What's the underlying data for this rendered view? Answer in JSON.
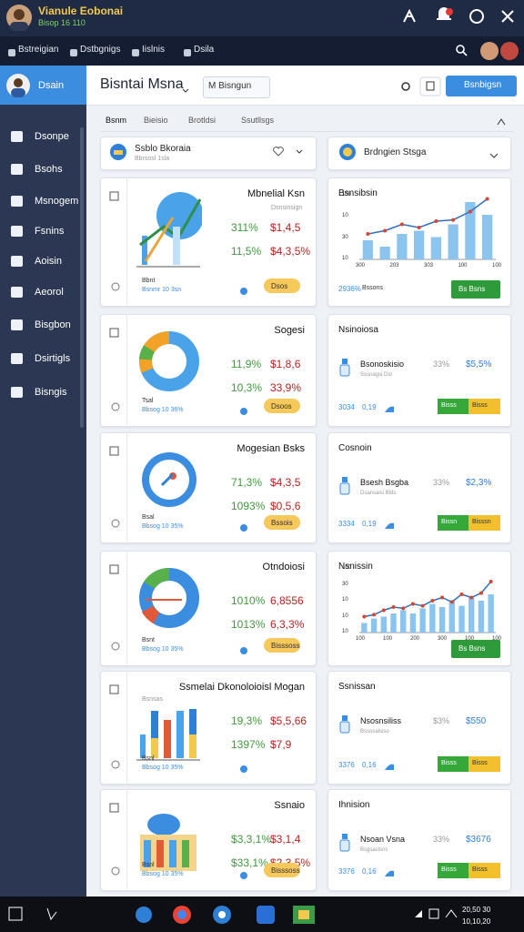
{
  "topbar": {
    "title": "Vianule Eobonai",
    "subtitle": "Bisop 16 110"
  },
  "nav": [
    "Bstreigian",
    "Dstbgnigs",
    "Iislnis",
    "Dsila"
  ],
  "sidebar": [
    "Dsain",
    "Dsonpe",
    "Bsohs",
    "Msnogem",
    "Fsnins",
    "Aoisin",
    "Aeorol",
    "Bisgbon",
    "Dsirtigls",
    "Bisngis"
  ],
  "header": {
    "title": "Bisntai Msna",
    "dropdown": "M Bisngun",
    "button": "Bsnbigsn"
  },
  "tabs": [
    "Bsnm",
    "Bieisio",
    "Brotldsi",
    "Ssutllsgs"
  ],
  "left_header": {
    "title": "Ssblo Bkoraia",
    "subtitle": "Bbrsosl 1sla"
  },
  "right_header": {
    "title": "Brdngien Stsga"
  },
  "left_cards": [
    {
      "title": "Mbnelial Ksn",
      "subtitle": "Dsnsinsign",
      "m1": "311%",
      "v1": "$1,4,5",
      "m2": "11,5%",
      "v2": "$4,3,5%",
      "foot1": "Bbnt",
      "foot2": "Bsnmr 10 3sn",
      "badge": "Dsos"
    },
    {
      "title": "Sogesi",
      "m1": "11,9%",
      "v1": "$1,8,6",
      "m2": "10,3%",
      "v2": "33,9%",
      "foot1": "Tsal",
      "foot2": "Bbsog 10 36%",
      "badge": "Dsoos"
    },
    {
      "title": "Mogesian Bsks",
      "m1": "71,3%",
      "v1": "$4,3,5",
      "m2": "1093%",
      "v2": "$0,5,6",
      "foot1": "Bsal",
      "foot2": "Bbsog 10 35%",
      "badge": "Bssois"
    },
    {
      "title": "Otndoiosi",
      "m1": "1010%",
      "v1": "6,8556",
      "m2": "1013%",
      "v2": "6,3,3%",
      "foot1": "Bsnt",
      "foot2": "Bbsog 10 35%",
      "badge": "Bisssoss"
    },
    {
      "title": "Ssmelai Dkonoloioisl Mogan",
      "subtitle": "Bsnsas",
      "m1": "19,3%",
      "v1": "$5,5,66",
      "m2": "1397%",
      "v2": "$7,9",
      "foot1": "Bsnl",
      "foot2": "Bbsog 10 35%"
    },
    {
      "title": "Ssnaio",
      "m1": "$3,3,1%",
      "v1": "$3,1,4",
      "m2": "$33,1%",
      "v2": "$2,3,5%",
      "foot1": "Bsnl",
      "foot2": "Bbsog 10 35%",
      "badge": "Bisssoss"
    }
  ],
  "right_cards": [
    {
      "title": "Bsnsibsin",
      "chart": {
        "type": "bar",
        "ylim": [
          0,
          100
        ],
        "bars": [
          30,
          20,
          40,
          45,
          35,
          55,
          90,
          70
        ],
        "line": [
          40,
          45,
          55,
          50,
          60,
          62,
          75,
          95
        ],
        "y_labels": [
          "100",
          "10",
          "30",
          "10"
        ],
        "x_labels": [
          "300",
          "203",
          "303",
          "100",
          "100"
        ]
      },
      "foot": "2936%",
      "foot2": "Bssons",
      "button": "Bs Bsns"
    },
    {
      "title": "Nsinoiosa",
      "item": "Bsonoskisio",
      "item_sub": "Sssnagsi Dsl",
      "pct": "33%",
      "val": "$5,5%",
      "foot": "3034",
      "foot2": "0,19",
      "badge1": "Bisss",
      "badge2": "Bisss"
    },
    {
      "title": "Cosnoin",
      "item": "Bsesh Bsgba",
      "item_sub": "Dsansaisi Blds",
      "pct": "33%",
      "val": "$2,3%",
      "foot": "3334",
      "foot2": "0,19",
      "badge1": "Bissn",
      "badge2": "Bisssn"
    },
    {
      "title": "Nsnissin",
      "chart": {
        "type": "bar",
        "ylim": [
          0,
          100
        ],
        "bars": [
          15,
          22,
          25,
          30,
          35,
          30,
          38,
          45,
          40,
          50,
          42,
          55,
          50,
          60
        ],
        "line": [
          25,
          28,
          35,
          40,
          38,
          45,
          42,
          50,
          55,
          48,
          60,
          55,
          62,
          80
        ],
        "y_labels": [
          "100",
          "30",
          "10",
          "10",
          "10"
        ],
        "x_labels": [
          "100",
          "100",
          "200",
          "300",
          "100",
          "100"
        ]
      },
      "button": "Bs Bsns"
    },
    {
      "title": "Ssnissan",
      "item": "Nsosnsiliss",
      "item_sub": "Bssosalsiso",
      "pct": "$3%",
      "val": "$550",
      "foot": "3376",
      "foot2": "0,16",
      "badge1": "Bisss",
      "badge2": "Bisss"
    },
    {
      "title": "Ihnision",
      "item": "Nsoan Vsna",
      "item_sub": "Bsgsaslsns",
      "pct": "33%",
      "val": "$3676",
      "foot": "3376",
      "foot2": "0,16",
      "badge1": "Bisss",
      "badge2": "Bisss"
    }
  ],
  "taskbar": {
    "time": "20,50 30",
    "date": "10,10,20"
  }
}
